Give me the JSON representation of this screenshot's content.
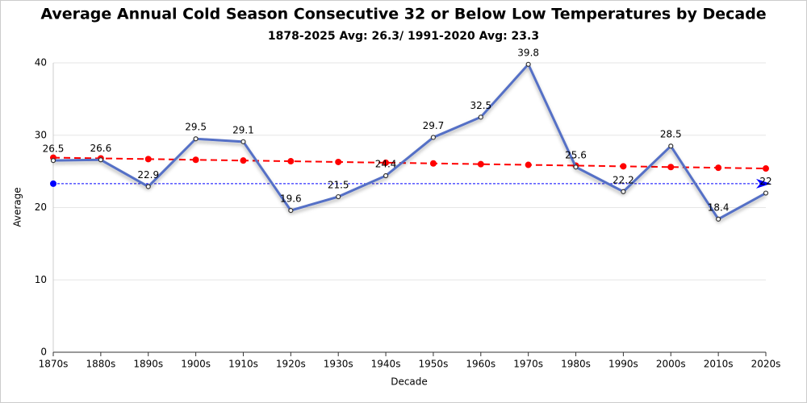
{
  "chart_data": {
    "type": "line",
    "title": "Average Annual Cold Season Consecutive 32 or Below Low Temperatures by Decade",
    "subtitle": "1878-2025 Avg: 26.3/ 1991-2020 Avg: 23.3",
    "x_label": "Decade",
    "y_label": "Average",
    "categories": [
      "1870s",
      "1880s",
      "1890s",
      "1900s",
      "1910s",
      "1920s",
      "1930s",
      "1940s",
      "1950s",
      "1960s",
      "1970s",
      "1980s",
      "1990s",
      "2000s",
      "2010s",
      "2020s"
    ],
    "series": [
      {
        "color": "#5470c6",
        "values": [
          26.5,
          26.6,
          22.9,
          29.5,
          29.1,
          19.6,
          21.5,
          24.4,
          29.7,
          32.5,
          39.8,
          25.6,
          22.2,
          28.5,
          18.4,
          22
        ],
        "labels": true
      },
      {
        "color": "#ff0000",
        "dashed": true,
        "values": [
          26.9,
          26.8,
          26.7,
          26.6,
          26.5,
          26.4,
          26.3,
          26.2,
          26.1,
          26.0,
          25.9,
          25.8,
          25.7,
          25.6,
          25.5,
          25.4
        ]
      }
    ],
    "reference_line": {
      "value": 23.3,
      "color": "#0000ff"
    },
    "ylim": [
      0,
      40
    ],
    "yticks": [
      0,
      10,
      20,
      30,
      40
    ],
    "grid": true
  }
}
